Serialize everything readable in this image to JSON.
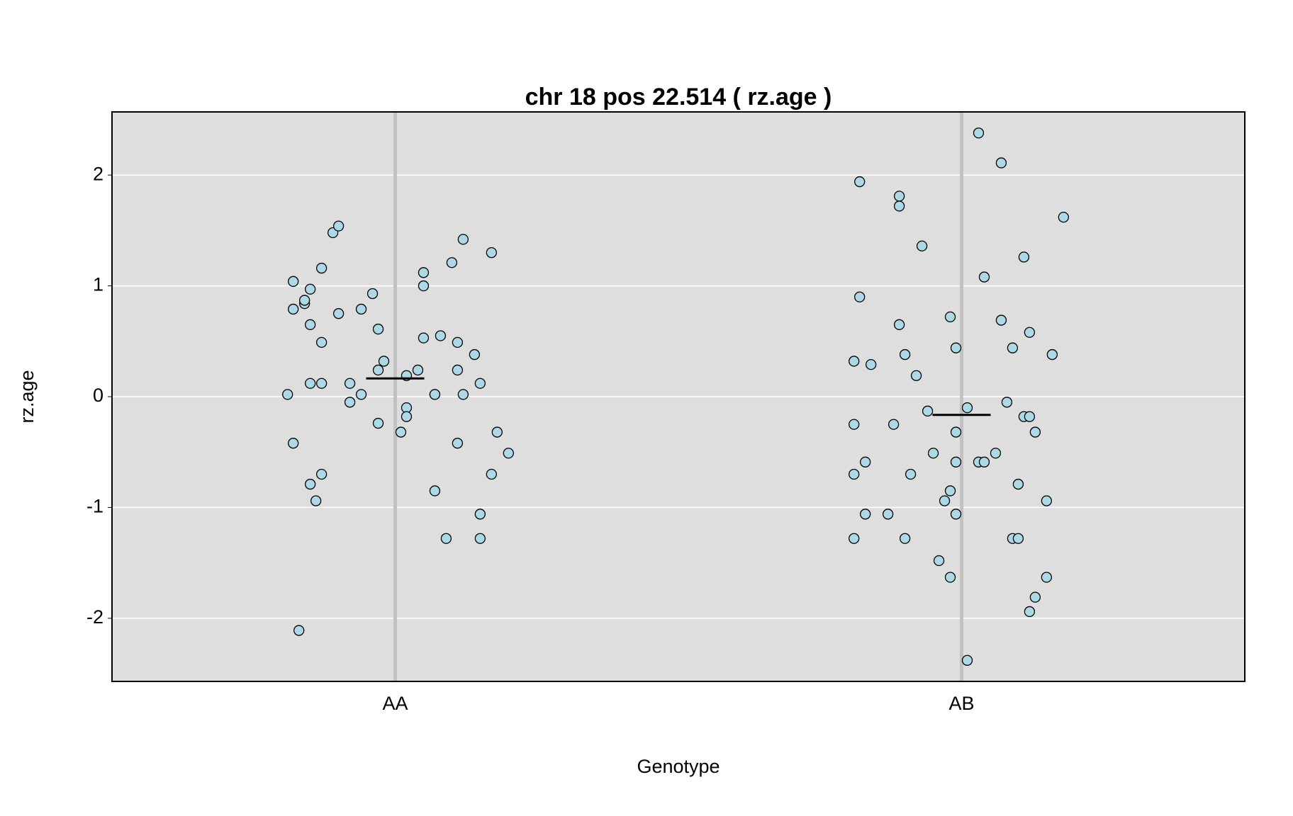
{
  "chart_data": {
    "type": "scatter",
    "title": "chr 18 pos 22.514 ( rz.age )",
    "x_label": "Genotype",
    "y_label": "rz.age",
    "xlim": [
      0.5,
      2.5
    ],
    "ylim": [
      -2.57,
      2.57
    ],
    "xticks": [
      {
        "value": 1,
        "label": "AA"
      },
      {
        "value": 2,
        "label": "AB"
      }
    ],
    "yticks": [
      -2,
      -1,
      0,
      1,
      2
    ],
    "grid": true,
    "color": "#add8e6",
    "x": [
      0.81,
      0.82,
      0.82,
      0.82,
      0.83,
      0.84,
      0.84,
      0.85,
      0.85,
      0.85,
      0.85,
      0.86,
      0.87,
      0.87,
      0.87,
      0.87,
      0.89,
      0.9,
      0.9,
      0.92,
      0.92,
      0.94,
      0.94,
      0.96,
      0.97,
      0.97,
      0.97,
      0.98,
      1.01,
      1.02,
      1.02,
      1.02,
      1.04,
      1.05,
      1.05,
      1.05,
      1.07,
      1.07,
      1.08,
      1.07,
      1.09,
      1.1,
      1.11,
      1.11,
      1.11,
      1.12,
      1.12,
      1.14,
      1.15,
      1.15,
      1.15,
      1.17,
      1.17,
      1.18,
      1.2,
      1.81,
      1.81,
      1.81,
      1.81,
      1.82,
      1.82,
      1.83,
      1.83,
      1.84,
      1.87,
      1.88,
      1.89,
      1.89,
      1.89,
      1.9,
      1.9,
      1.91,
      1.92,
      1.93,
      1.94,
      1.95,
      1.96,
      1.97,
      1.98,
      1.98,
      1.98,
      1.99,
      1.99,
      1.99,
      1.99,
      2.01,
      2.01,
      2.03,
      2.03,
      2.04,
      2.04,
      2.06,
      2.07,
      2.07,
      2.08,
      2.09,
      2.09,
      2.1,
      2.1,
      2.11,
      2.11,
      2.12,
      2.12,
      2.12,
      2.13,
      2.13,
      2.15,
      2.15,
      2.16,
      2.18
    ],
    "values": [
      0.02,
      1.04,
      0.79,
      -0.42,
      -2.11,
      0.84,
      0.87,
      0.65,
      0.97,
      0.12,
      -0.79,
      -0.94,
      1.16,
      0.49,
      0.12,
      -0.7,
      1.48,
      1.54,
      0.75,
      0.12,
      -0.05,
      0.02,
      0.79,
      0.93,
      0.61,
      0.24,
      -0.24,
      0.32,
      -0.32,
      0.19,
      -0.1,
      -0.18,
      0.24,
      1.0,
      1.12,
      0.53,
      0.02,
      0.02,
      0.55,
      -0.85,
      -1.28,
      1.21,
      0.24,
      0.49,
      -0.42,
      1.42,
      0.02,
      0.38,
      -1.06,
      0.12,
      -1.28,
      -0.7,
      1.3,
      -0.32,
      -0.51,
      -0.25,
      -0.7,
      -1.28,
      0.32,
      1.94,
      0.9,
      -0.59,
      -1.06,
      0.29,
      -1.06,
      -0.25,
      1.72,
      1.81,
      0.65,
      0.38,
      -1.28,
      -0.7,
      0.19,
      1.36,
      -0.13,
      -0.51,
      -1.48,
      -0.94,
      0.72,
      -1.63,
      -0.85,
      -0.59,
      -1.06,
      0.44,
      -0.32,
      -2.38,
      -0.1,
      -0.59,
      2.38,
      1.08,
      -0.59,
      -0.51,
      2.11,
      0.69,
      -0.05,
      -1.28,
      0.44,
      -0.79,
      -1.28,
      -0.18,
      1.26,
      0.58,
      -0.18,
      -1.94,
      -0.32,
      -1.81,
      -0.94,
      -1.63,
      0.38,
      1.62
    ],
    "means": {
      "x": [
        1,
        2
      ],
      "values": [
        0.165,
        -0.165
      ]
    }
  }
}
